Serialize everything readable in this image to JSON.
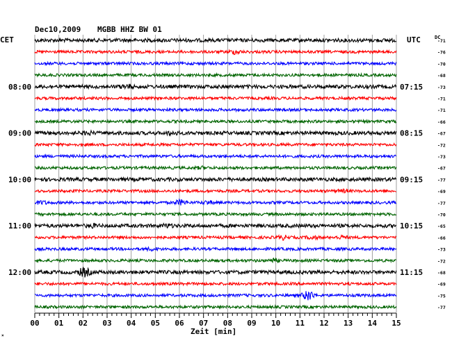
{
  "header": {
    "date": "Dec10,2009",
    "station": "MGBB HHZ BW 01"
  },
  "left_timezone": "CET",
  "right_timezone": "UTC",
  "dc_label": "DC",
  "chart_data": {
    "type": "line",
    "title": "Dec10,2009 MGBB HHZ BW 01",
    "xlabel": "Zeit [min]",
    "xlim": [
      0,
      15
    ],
    "x_ticks": [
      "00",
      "01",
      "02",
      "03",
      "04",
      "05",
      "06",
      "07",
      "08",
      "09",
      "10",
      "11",
      "12",
      "13",
      "14",
      "15"
    ],
    "left_hour_labels": [
      {
        "trace": 4,
        "label": "08:00"
      },
      {
        "trace": 8,
        "label": "09:00"
      },
      {
        "trace": 12,
        "label": "10:00"
      },
      {
        "trace": 16,
        "label": "11:00"
      },
      {
        "trace": 20,
        "label": "12:00"
      }
    ],
    "right_hour_labels": [
      {
        "trace": 4,
        "label": "07:15"
      },
      {
        "trace": 8,
        "label": "08:15"
      },
      {
        "trace": 12,
        "label": "09:15"
      },
      {
        "trace": 16,
        "label": "10:15"
      },
      {
        "trace": 20,
        "label": "11:15"
      }
    ],
    "trace_colors": [
      "#000000",
      "#ff0000",
      "#0000ff",
      "#006400"
    ],
    "dc_offsets": [
      "-71",
      "-76",
      "-70",
      "-68",
      "-73",
      "-71",
      "-71",
      "-66",
      "-67",
      "-72",
      "-73",
      "-67",
      "-77",
      "-69",
      "-77",
      "-70",
      "-65",
      "-66",
      "-73",
      "-72",
      "-68",
      "-69",
      "-75",
      "-77"
    ],
    "events": [
      {
        "trace": 1,
        "minute": 8.3,
        "strength": 2.2
      },
      {
        "trace": 4,
        "minute": 3.8,
        "strength": 1.8
      },
      {
        "trace": 8,
        "minute": 2.2,
        "strength": 1.6
      },
      {
        "trace": 8,
        "minute": 5.7,
        "strength": 1.6
      },
      {
        "trace": 11,
        "minute": 6.9,
        "strength": 1.6
      },
      {
        "trace": 13,
        "minute": 12.8,
        "strength": 1.7
      },
      {
        "trace": 14,
        "minute": 0.3,
        "strength": 1.9
      },
      {
        "trace": 14,
        "minute": 6.05,
        "strength": 2.6
      },
      {
        "trace": 14,
        "minute": 7.2,
        "strength": 2.0
      },
      {
        "trace": 16,
        "minute": 2.4,
        "strength": 1.6
      },
      {
        "trace": 16,
        "minute": 5.5,
        "strength": 1.7
      },
      {
        "trace": 17,
        "minute": 10.3,
        "strength": 2.2
      },
      {
        "trace": 17,
        "minute": 11.5,
        "strength": 2.0
      },
      {
        "trace": 17,
        "minute": 12.7,
        "strength": 1.8
      },
      {
        "trace": 18,
        "minute": 4.9,
        "strength": 1.8
      },
      {
        "trace": 19,
        "minute": 9.9,
        "strength": 2.0
      },
      {
        "trace": 20,
        "minute": 2.05,
        "strength": 3.2
      },
      {
        "trace": 22,
        "minute": 11.35,
        "strength": 4.5
      }
    ]
  }
}
